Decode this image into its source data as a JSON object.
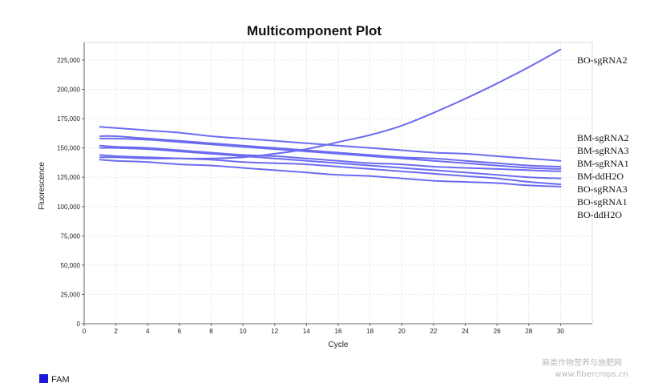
{
  "watermark": {
    "line1": "麻类作物营养与施肥网",
    "line2": "www.fibercrops.cn"
  },
  "chart_data": {
    "type": "line",
    "title": "Multicomponent Plot",
    "xlabel": "Cycle",
    "ylabel": "Fluorescence",
    "xlim": [
      0,
      32
    ],
    "ylim": [
      0,
      240000
    ],
    "x_ticks": [
      0,
      2,
      4,
      6,
      8,
      10,
      12,
      14,
      16,
      18,
      20,
      22,
      24,
      26,
      28,
      30
    ],
    "y_ticks": [
      0,
      25000,
      50000,
      75000,
      100000,
      125000,
      150000,
      175000,
      200000,
      225000
    ],
    "y_tick_labels": [
      "0",
      "25,000",
      "50,000",
      "75,000",
      "100,000",
      "125,000",
      "150,000",
      "175,000",
      "200,000",
      "225,000"
    ],
    "grid": true,
    "line_color": "#6b6bf0",
    "x": [
      1,
      2,
      4,
      6,
      8,
      10,
      12,
      14,
      16,
      18,
      20,
      22,
      24,
      26,
      28,
      30
    ],
    "series": [
      {
        "name": "BO-sgRNA2",
        "values": [
          142000,
          142000,
          141000,
          141000,
          141000,
          142000,
          145000,
          149000,
          155000,
          161000,
          169000,
          180000,
          192000,
          205000,
          219000,
          234000
        ]
      },
      {
        "name": "BM-sgRNA2",
        "values": [
          168000,
          167000,
          165000,
          163000,
          160000,
          158000,
          156000,
          154000,
          152000,
          150000,
          148000,
          146000,
          145000,
          143000,
          141000,
          139000
        ]
      },
      {
        "name": "BM-sgRNA3",
        "values": [
          160000,
          160000,
          158000,
          156000,
          154000,
          152000,
          150000,
          148000,
          146000,
          144000,
          142000,
          141000,
          139000,
          137000,
          135000,
          134000
        ]
      },
      {
        "name": "BM-sgRNA1",
        "values": [
          152000,
          151000,
          150000,
          148000,
          146000,
          144000,
          143000,
          141000,
          139000,
          137000,
          136000,
          134000,
          133000,
          132000,
          131000,
          130000
        ]
      },
      {
        "name": "BM-ddH2O",
        "values": [
          144000,
          143000,
          142000,
          141000,
          140000,
          138000,
          137000,
          136000,
          134000,
          132000,
          130000,
          128000,
          126000,
          124000,
          121000,
          119000
        ]
      },
      {
        "name": "BO-sgRNA3",
        "values": [
          140000,
          139000,
          138000,
          136000,
          135000,
          133000,
          131000,
          129000,
          127000,
          126000,
          124000,
          122000,
          121000,
          120000,
          118000,
          117000
        ]
      },
      {
        "name": "BO-sgRNA1",
        "values": [
          158000,
          158000,
          157000,
          155000,
          153000,
          151000,
          149000,
          147000,
          145000,
          143000,
          141000,
          139000,
          137000,
          135000,
          133000,
          132000
        ]
      },
      {
        "name": "BO-ddH2O",
        "values": [
          150000,
          150000,
          149000,
          147000,
          145000,
          143000,
          141000,
          139000,
          137000,
          135000,
          133000,
          131000,
          129000,
          127000,
          125000,
          124000
        ]
      }
    ],
    "legend": {
      "placement": "bottom-left",
      "items": [
        {
          "label": "FAM",
          "color": "#1a1ad6"
        }
      ]
    }
  }
}
